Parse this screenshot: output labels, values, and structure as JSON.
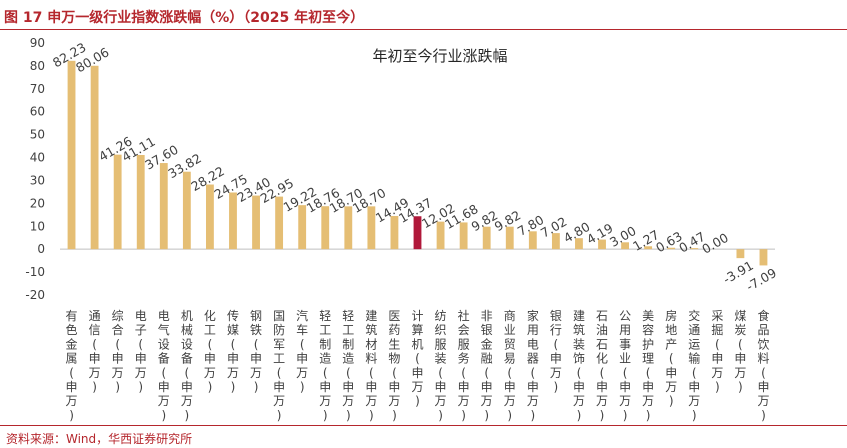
{
  "figure": {
    "title": "图 17  申万一级行业指数涨跌幅（%）（2025 年初至今）",
    "source": "资料来源：Wind，华西证券研究所"
  },
  "colors": {
    "bar": "#E5BE74",
    "highlight": "#B0183A",
    "accent": "#B5272D",
    "axis": "#BFBFBF",
    "text": "#404040"
  },
  "chart_data": {
    "type": "bar",
    "title": "年初至今行业涨跌幅",
    "xlabel": "",
    "ylabel": "",
    "ylim": [
      -20,
      90
    ],
    "yticks": [
      -20,
      -10,
      0,
      10,
      20,
      30,
      40,
      50,
      60,
      70,
      80,
      90
    ],
    "grid": false,
    "highlight_category": "计算机(申万)",
    "categories": [
      "有色金属(申万)",
      "通信(申万)",
      "综合(申万)",
      "电子(申万)",
      "电气设备(申万)",
      "机械设备(申万)",
      "化工(申万)",
      "传媒(申万)",
      "钢铁(申万)",
      "国防军工(申万)",
      "汽车(申万)",
      "轻工制造(申万)",
      "轻工制造(申万)",
      "建筑材料(申万)",
      "医药生物(申万)",
      "计算机(申万)",
      "纺织服装(申万)",
      "社会服务(申万)",
      "非银金融(申万)",
      "商业贸易(申万)",
      "家用电器(申万)",
      "银行(申万)",
      "建筑装饰(申万)",
      "石油石化(申万)",
      "公用事业(申万)",
      "美容护理(申万)",
      "房地产(申万)",
      "交通运输(申万)",
      "采掘(申万)",
      "煤炭(申万)",
      "食品饮料(申万)"
    ],
    "values": [
      82.23,
      80.06,
      41.26,
      41.11,
      37.6,
      33.82,
      28.22,
      24.75,
      23.4,
      22.95,
      19.22,
      18.76,
      18.7,
      18.7,
      14.49,
      14.37,
      12.02,
      11.68,
      9.82,
      9.82,
      7.8,
      7.02,
      4.8,
      4.19,
      3.0,
      1.27,
      0.63,
      0.47,
      0.0,
      -3.91,
      -7.09
    ],
    "value_labels": [
      "82.23",
      "80.06",
      "41.26",
      "41.11",
      "37.60",
      "33.82",
      "28.22",
      "24.75",
      "23.40",
      "22.95",
      "19.22",
      "18.76",
      "18.70",
      "18.70",
      "14.49",
      "14.37",
      "12.02",
      "11.68",
      "9.82",
      "9.82",
      "7.80",
      "7.02",
      "4.80",
      "4.19",
      "3.00",
      "1.27",
      "0.63",
      "0.47",
      "0.00",
      "-3.91",
      "-7.09"
    ]
  }
}
